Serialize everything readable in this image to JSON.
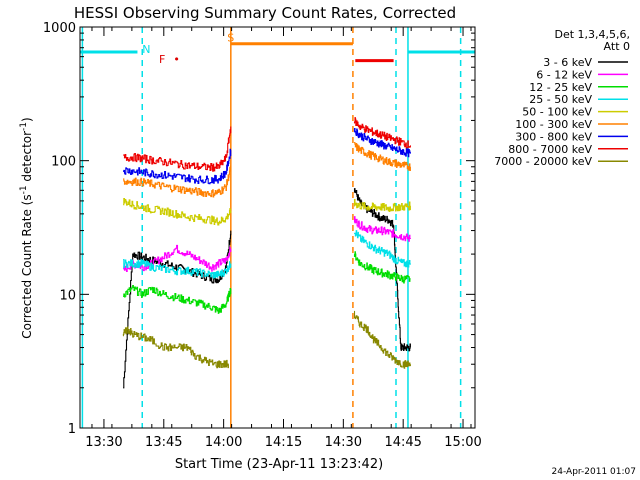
{
  "chart_data": {
    "type": "line",
    "title": "HESSI Observing Summary Count Rates, Corrected",
    "xlabel": "Start Time (23-Apr-11 13:23:42)",
    "ylabel_main": "Corrected Count Rate (s",
    "ylabel_sup1": "-1",
    "ylabel_mid": " detector",
    "ylabel_sup2": "-1",
    "ylabel_end": ")",
    "y_scale": "log",
    "xlim": [
      13.4,
      15.05
    ],
    "ylim": [
      1,
      1000
    ],
    "x_ticks": [
      {
        "value": 13.5,
        "label": "13:30"
      },
      {
        "value": 13.75,
        "label": "13:45"
      },
      {
        "value": 14.0,
        "label": "14:00"
      },
      {
        "value": 14.25,
        "label": "14:15"
      },
      {
        "value": 14.5,
        "label": "14:30"
      },
      {
        "value": 14.75,
        "label": "14:45"
      },
      {
        "value": 15.0,
        "label": "15:00"
      }
    ],
    "y_ticks": [
      {
        "value": 1,
        "label": "1"
      },
      {
        "value": 10,
        "label": "10"
      },
      {
        "value": 100,
        "label": "100"
      },
      {
        "value": 1000,
        "label": "1000"
      }
    ],
    "legend": {
      "placement": "right",
      "header": [
        "Det 1,3,4,5,6,",
        "Att 0"
      ]
    },
    "time_markers": {
      "solid_cyan": [
        13.41,
        14.77
      ],
      "dashed_cyan": [
        13.66,
        14.72,
        14.99
      ],
      "solid_orange": [
        14.03
      ],
      "dashed_orange": [
        14.54
      ]
    },
    "flag_bars": [
      {
        "label": "",
        "x": [
          13.4,
          13.64
        ],
        "y": 650,
        "color": "#00e0e8"
      },
      {
        "label": "S",
        "x": [
          14.03,
          14.54
        ],
        "y": 750,
        "color": "#ff8000"
      },
      {
        "label": "",
        "x": [
          14.55,
          14.71
        ],
        "y": 560,
        "color": "#ee0000"
      },
      {
        "label": "",
        "x": [
          14.77,
          15.05
        ],
        "y": 650,
        "color": "#00e0e8"
      }
    ],
    "flag_letters": [
      {
        "text": "N",
        "x": 13.66,
        "y": 640,
        "color": "#00e0e8"
      },
      {
        "text": "F",
        "x": 13.73,
        "y": 540,
        "color": "#dd0000"
      },
      {
        "text": "•",
        "x": 13.79,
        "y": 540,
        "color": "#dd0000"
      },
      {
        "text": "S",
        "x": 14.015,
        "y": 780,
        "color": "#ff8000"
      }
    ],
    "series": [
      {
        "name": "3 - 6 keV",
        "color": "#000000",
        "segments": [
          {
            "x": [
              13.58,
              13.62,
              13.66,
              13.7,
              13.75,
              13.8,
              13.85,
              13.9,
              13.95,
              13.98,
              14.01,
              14.03
            ],
            "y": [
              2,
              20,
              19,
              18,
              17,
              16,
              15,
              14,
              13,
              13,
              16,
              30
            ]
          },
          {
            "x": [
              14.545,
              14.57,
              14.6,
              14.63,
              14.66,
              14.69,
              14.71,
              14.72,
              14.74,
              14.76,
              14.78
            ],
            "y": [
              62,
              48,
              43,
              40,
              37,
              36,
              33,
              15,
              4,
              4,
              4
            ]
          }
        ]
      },
      {
        "name": "6 - 12 keV",
        "color": "#ff00ff",
        "segments": [
          {
            "x": [
              13.58,
              13.62,
              13.66,
              13.7,
              13.75,
              13.8,
              13.85,
              13.9,
              13.95,
              13.98,
              14.01,
              14.03
            ],
            "y": [
              15,
              17,
              16,
              17,
              19,
              22,
              20,
              18,
              16,
              17,
              18,
              22
            ]
          },
          {
            "x": [
              14.545,
              14.57,
              14.6,
              14.63,
              14.66,
              14.69,
              14.72,
              14.75,
              14.78
            ],
            "y": [
              36,
              33,
              31,
              30,
              30,
              29,
              28,
              27,
              26
            ]
          }
        ]
      },
      {
        "name": "12 - 25 keV",
        "color": "#00dd00",
        "segments": [
          {
            "x": [
              13.58,
              13.62,
              13.66,
              13.7,
              13.75,
              13.8,
              13.85,
              13.9,
              13.95,
              13.98,
              14.01,
              14.03
            ],
            "y": [
              10,
              11,
              10,
              11,
              10,
              9.5,
              9,
              8.5,
              8,
              7.5,
              8.5,
              11
            ]
          },
          {
            "x": [
              14.545,
              14.57,
              14.6,
              14.63,
              14.66,
              14.69,
              14.72,
              14.75,
              14.78
            ],
            "y": [
              20,
              17,
              16,
              15,
              14.5,
              14,
              13.5,
              13,
              13
            ]
          }
        ]
      },
      {
        "name": "25 - 50 keV",
        "color": "#00e0e8",
        "segments": [
          {
            "x": [
              13.58,
              13.62,
              13.66,
              13.7,
              13.75,
              13.8,
              13.85,
              13.9,
              13.95,
              13.98,
              14.01,
              14.03
            ],
            "y": [
              17,
              17,
              17,
              16,
              15.5,
              15,
              15,
              14.5,
              14,
              14,
              15,
              17
            ]
          },
          {
            "x": [
              14.545,
              14.57,
              14.6,
              14.63,
              14.66,
              14.69,
              14.72,
              14.75,
              14.78
            ],
            "y": [
              30,
              26,
              24,
              22,
              21,
              20,
              18,
              17,
              17
            ]
          }
        ]
      },
      {
        "name": "50 - 100 keV",
        "color": "#cccc00",
        "segments": [
          {
            "x": [
              13.58,
              13.62,
              13.66,
              13.7,
              13.75,
              13.8,
              13.85,
              13.9,
              13.95,
              13.98,
              14.01,
              14.03
            ],
            "y": [
              50,
              47,
              45,
              43,
              42,
              40,
              38,
              37,
              36,
              35,
              37,
              42
            ]
          },
          {
            "x": [
              14.545,
              14.57,
              14.6,
              14.63,
              14.66,
              14.69,
              14.72,
              14.75,
              14.78
            ],
            "y": [
              48,
              46,
              45,
              45,
              45,
              44,
              45,
              45,
              46
            ]
          }
        ]
      },
      {
        "name": "100 - 300 keV",
        "color": "#ff8000",
        "segments": [
          {
            "x": [
              13.58,
              13.62,
              13.66,
              13.7,
              13.75,
              13.8,
              13.85,
              13.9,
              13.95,
              13.98,
              14.01,
              14.03
            ],
            "y": [
              70,
              70,
              69,
              67,
              64,
              62,
              60,
              58,
              57,
              58,
              64,
              90
            ]
          },
          {
            "x": [
              14.545,
              14.57,
              14.6,
              14.63,
              14.66,
              14.69,
              14.72,
              14.75,
              14.78
            ],
            "y": [
              130,
              120,
              113,
              107,
              102,
              98,
              95,
              92,
              90
            ]
          }
        ]
      },
      {
        "name": "300 - 800 keV",
        "color": "#0000ee",
        "segments": [
          {
            "x": [
              13.58,
              13.62,
              13.66,
              13.7,
              13.75,
              13.8,
              13.85,
              13.9,
              13.95,
              13.98,
              14.01,
              14.03
            ],
            "y": [
              85,
              84,
              82,
              80,
              78,
              76,
              74,
              72,
              72,
              73,
              82,
              120
            ]
          },
          {
            "x": [
              14.545,
              14.57,
              14.6,
              14.63,
              14.66,
              14.69,
              14.72,
              14.75,
              14.78
            ],
            "y": [
              170,
              155,
              145,
              138,
              132,
              126,
              121,
              117,
              113
            ]
          }
        ]
      },
      {
        "name": "800 - 7000 keV",
        "color": "#ee0000",
        "segments": [
          {
            "x": [
              13.58,
              13.62,
              13.66,
              13.7,
              13.75,
              13.8,
              13.85,
              13.9,
              13.95,
              13.98,
              14.01,
              14.03
            ],
            "y": [
              105,
              106,
              104,
              101,
              98,
              95,
              92,
              90,
              89,
              90,
              105,
              180
            ]
          },
          {
            "x": [
              14.545,
              14.57,
              14.6,
              14.63,
              14.66,
              14.69,
              14.72,
              14.75,
              14.78
            ],
            "y": [
              200,
              180,
              170,
              162,
              155,
              148,
              142,
              136,
              130
            ]
          }
        ]
      },
      {
        "name": "7000 - 20000 keV",
        "color": "#888800",
        "segments": [
          {
            "x": [
              13.58,
              13.6,
              13.62,
              13.66,
              13.7,
              13.75,
              13.8,
              13.85,
              13.88,
              13.92,
              13.96,
              14.0,
              14.02
            ],
            "y": [
              5,
              5.5,
              5,
              4.8,
              4.5,
              4,
              4,
              4,
              3.5,
              3.2,
              3,
              3,
              3
            ]
          },
          {
            "x": [
              14.545,
              14.57,
              14.6,
              14.63,
              14.66,
              14.69,
              14.72,
              14.75,
              14.78
            ],
            "y": [
              7,
              6,
              5.5,
              4.5,
              4,
              3.5,
              3.2,
              3,
              3
            ]
          }
        ]
      }
    ]
  },
  "footer": {
    "timestamp": "24-Apr-2011 01:07"
  }
}
